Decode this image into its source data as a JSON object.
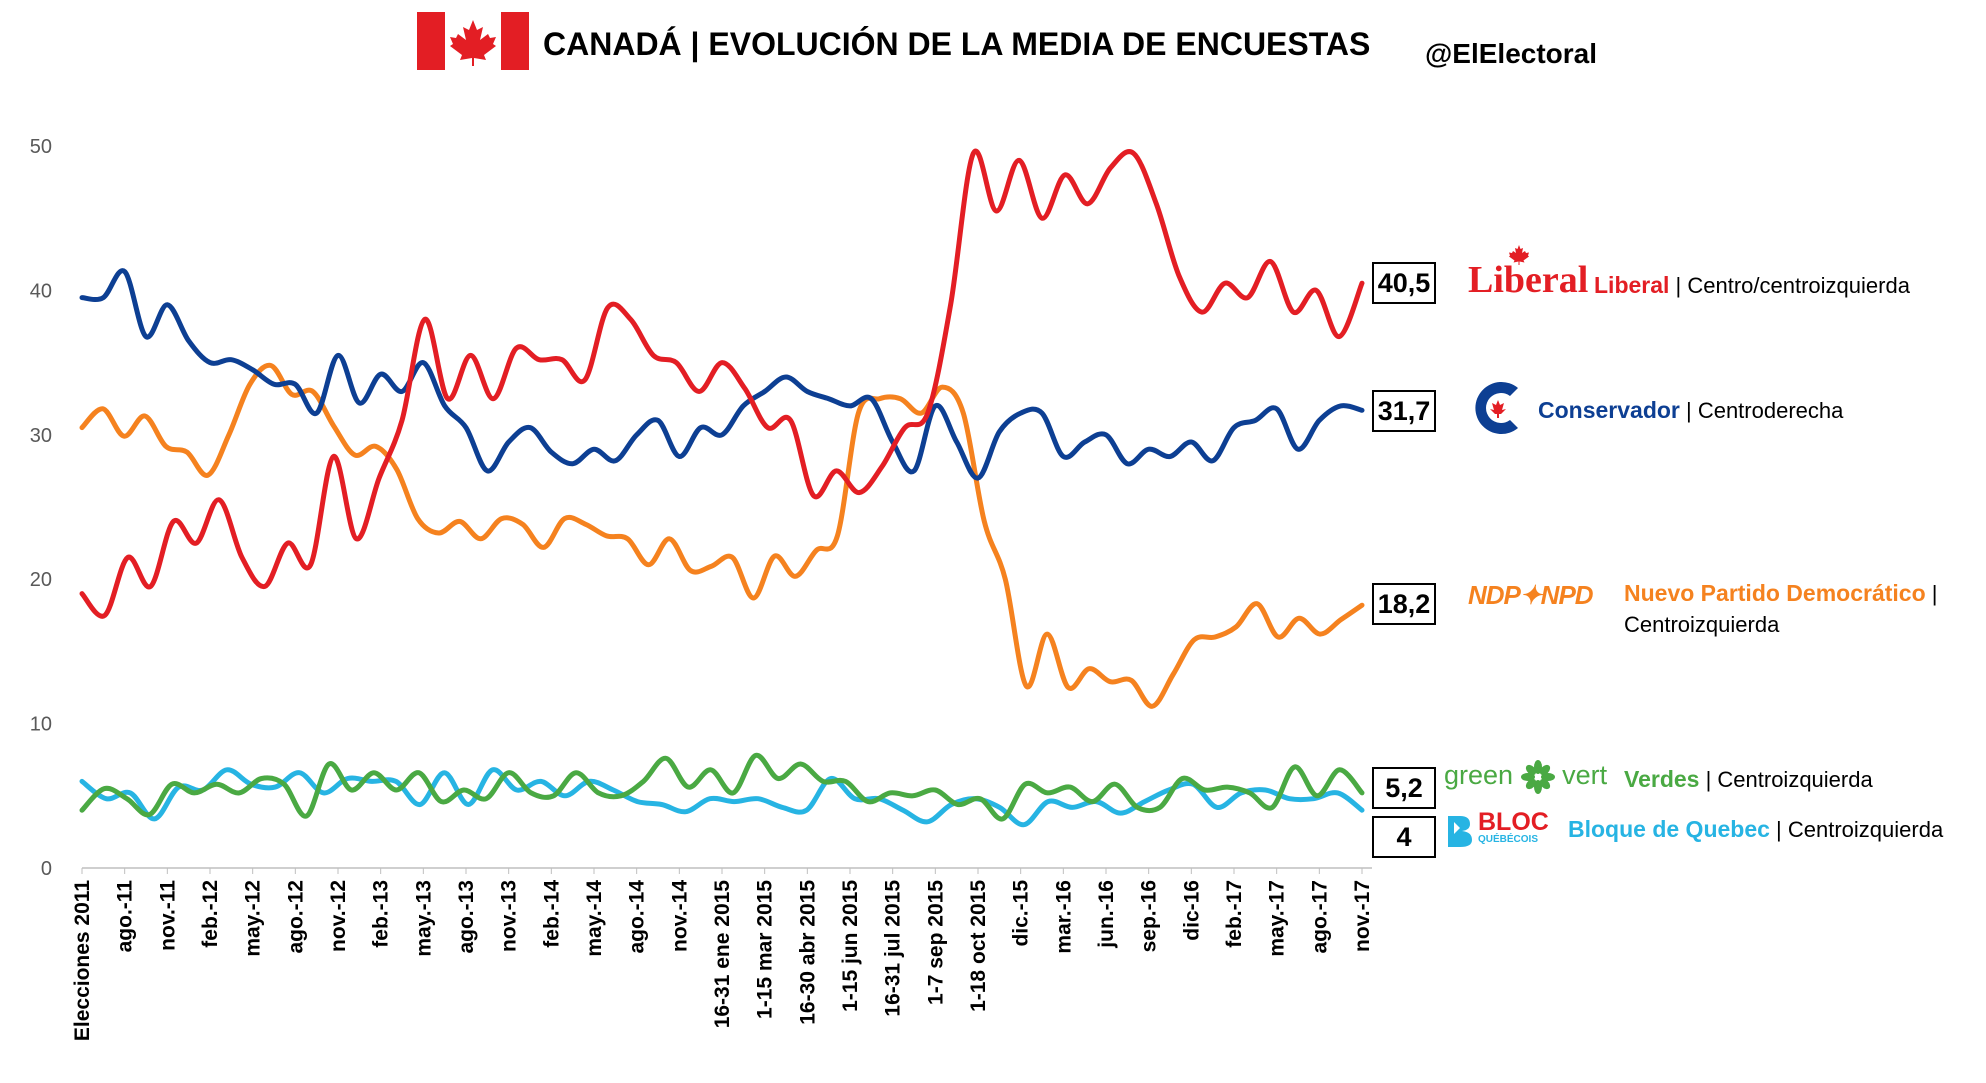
{
  "header": {
    "title": "CANADÁ | EVOLUCIÓN DE LA MEDIA DE ENCUESTAS",
    "handle": "@ElElectoral"
  },
  "chart_data": {
    "type": "line",
    "title": "CANADÁ | EVOLUCIÓN DE LA MEDIA DE ENCUESTAS",
    "ylim": [
      0,
      50
    ],
    "yticks": [
      0,
      10,
      20,
      30,
      40,
      50
    ],
    "xlabels": [
      "Elecciones 2011",
      "ago.-11",
      "nov.-11",
      "feb.-12",
      "may.-12",
      "ago.-12",
      "nov.-12",
      "feb.-13",
      "may.-13",
      "ago.-13",
      "nov.-13",
      "feb.-14",
      "may.-14",
      "ago.-14",
      "nov.-14",
      "16-31 ene 2015",
      "1-15 mar 2015",
      "16-30 abr 2015",
      "1-15 jun 2015",
      "16-31 jul 2015",
      "1-7 sep 2015",
      "1-18 oct 2015",
      "dic.-15",
      "mar.-16",
      "jun.-16",
      "sep.-16",
      "dic-16",
      "feb.-17",
      "may.-17",
      "ago.-17",
      "nov.-17"
    ],
    "grid": false,
    "series": [
      {
        "name": "Liberal",
        "color": "#e31e24",
        "end_label": "40,5",
        "values": [
          19,
          17.5,
          21.5,
          19.5,
          24,
          22.5,
          25.5,
          21.5,
          19.5,
          22.5,
          21,
          28.5,
          22.8,
          27,
          31,
          38,
          32.5,
          35.5,
          32.5,
          36,
          35.2,
          35.2,
          33.8,
          38.8,
          38,
          35.5,
          35,
          33,
          35,
          33.2,
          30.5,
          31,
          25.8,
          27.5,
          26,
          27.8,
          30.5,
          31.5,
          39,
          49.5,
          45.5,
          49,
          45,
          48,
          46,
          48.5,
          49.5,
          46,
          41,
          38.5,
          40.5,
          39.5,
          42,
          38.5,
          40,
          36.8,
          40.5
        ]
      },
      {
        "name": "Conservador",
        "color": "#0d3f93",
        "end_label": "31,7",
        "values": [
          39.5,
          39.5,
          41.3,
          36.8,
          39,
          36.5,
          35,
          35.2,
          34.5,
          33.5,
          33.5,
          31.5,
          35.5,
          32.2,
          34.2,
          33,
          35,
          32,
          30.5,
          27.5,
          29.5,
          30.5,
          28.8,
          28,
          29,
          28.2,
          30,
          31,
          28.5,
          30.5,
          30,
          32,
          33,
          34,
          33,
          32.5,
          32,
          32.5,
          29.5,
          27.5,
          32,
          29.5,
          27,
          30.2,
          31.5,
          31.5,
          28.5,
          29.5,
          30,
          28,
          29,
          28.5,
          29.5,
          28.2,
          30.5,
          31,
          31.8,
          29,
          31,
          32,
          31.7
        ]
      },
      {
        "name": "Nuevo Partido Democrático",
        "color": "#f5821f",
        "end_label": "18,2",
        "values": [
          30.5,
          31.8,
          29.9,
          31.3,
          29.2,
          28.8,
          27.2,
          30,
          33.5,
          34.8,
          32.8,
          33,
          30.6,
          28.6,
          29.2,
          27.6,
          24.2,
          23.2,
          24,
          22.8,
          24.2,
          23.8,
          22.2,
          24.2,
          23.8,
          23,
          22.8,
          21,
          22.8,
          20.6,
          20.9,
          21.5,
          18.7,
          21.6,
          20.2,
          22,
          23,
          31.5,
          32.5,
          32.5,
          31.5,
          33.3,
          31.5,
          24,
          20,
          12.6,
          16.2,
          12.5,
          13.8,
          12.9,
          13,
          11.2,
          13.4,
          15.8,
          16,
          16.7,
          18.3,
          16,
          17.3,
          16.2,
          17.2,
          18.2
        ]
      },
      {
        "name": "Verdes",
        "color": "#4aa943",
        "end_label": "5,2",
        "values": [
          4,
          5.5,
          4.8,
          3.7,
          5.8,
          5.2,
          5.8,
          5.2,
          6.2,
          5.8,
          3.6,
          7.2,
          5.4,
          6.6,
          5.4,
          6.6,
          4.6,
          5.4,
          4.8,
          6.6,
          5.2,
          5,
          6.6,
          5.2,
          5,
          6,
          7.6,
          5.6,
          6.8,
          5.2,
          7.8,
          6.2,
          7.2,
          6,
          6,
          4.6,
          5.2,
          5,
          5.4,
          4.4,
          4.8,
          3.4,
          5.8,
          5.2,
          5.6,
          4.6,
          5.8,
          4.2,
          4.2,
          6.2,
          5.4,
          5.6,
          5.2,
          4.2,
          7,
          5,
          6.8,
          5.2
        ]
      },
      {
        "name": "Bloque de Quebec",
        "color": "#27b4e3",
        "end_label": "4",
        "values": [
          6,
          4.8,
          5.2,
          3.4,
          5.6,
          5.4,
          6.8,
          5.8,
          5.6,
          6.6,
          5.2,
          6.2,
          6,
          6,
          4.4,
          6.6,
          4.4,
          6.8,
          5.4,
          6,
          5,
          6,
          5.4,
          4.6,
          4.4,
          3.9,
          4.8,
          4.6,
          4.8,
          4.2,
          4,
          6.2,
          4.8,
          4.8,
          4,
          3.2,
          4.4,
          4.8,
          4.2,
          3,
          4.6,
          4.2,
          4.6,
          3.8,
          4.6,
          5.4,
          5.8,
          4.2,
          5.2,
          5.4,
          4.8,
          4.8,
          5.2,
          4
        ]
      }
    ]
  },
  "legend": [
    {
      "logo": "Liberal",
      "name": "Liberal",
      "desc": " | Centro/centroizquierda",
      "value": "40,5",
      "color": "#e31e24"
    },
    {
      "logo": "",
      "name": "Conservador",
      "desc": " | Centroderecha",
      "value": "31,7",
      "color": "#0d3f93"
    },
    {
      "logo": "NDP✦NPD",
      "name": "Nuevo Partido Democrático",
      "desc": " |",
      "desc2": "Centroizquierda",
      "value": "18,2",
      "color": "#f5821f"
    },
    {
      "logo": "green",
      "logo2": "vert",
      "name": "Verdes",
      "desc": " | Centroizquierda",
      "value": "5,2",
      "color": "#4aa943"
    },
    {
      "logo": "BLOC",
      "logo_sub": "QUÉBÉCOIS",
      "name": "Bloque de Quebec",
      "desc": " | Centroizquierda",
      "value": "4",
      "color": "#27b4e3"
    }
  ]
}
